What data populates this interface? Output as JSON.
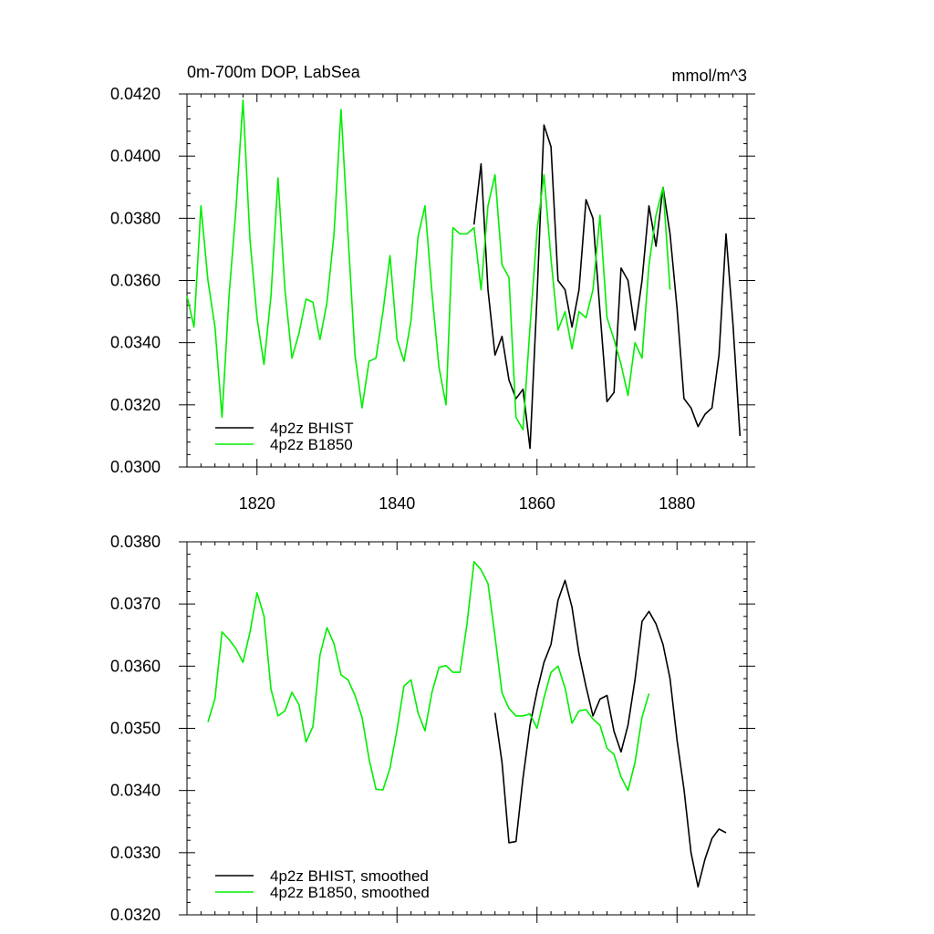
{
  "chart_data": [
    {
      "type": "line",
      "title_left": "0m-700m DOP, LabSea",
      "title_right": "mmol/m^3",
      "xlim": [
        1810,
        1890
      ],
      "ylim": [
        0.03,
        0.042
      ],
      "x_ticks": [
        1820,
        1840,
        1860,
        1880
      ],
      "x_tick_labels": [
        "1820",
        "1840",
        "1860",
        "1880"
      ],
      "y_ticks": [
        0.03,
        0.032,
        0.034,
        0.036,
        0.038,
        0.04,
        0.042
      ],
      "y_tick_labels": [
        "0.0300",
        "0.0320",
        "0.0340",
        "0.0360",
        "0.0380",
        "0.0400",
        "0.0420"
      ],
      "legend_position": "bottom-left",
      "series": [
        {
          "name": "4p2z BHIST",
          "color": "#000000",
          "x": [
            1851,
            1852,
            1853,
            1854,
            1855,
            1856,
            1857,
            1858,
            1859,
            1860,
            1861,
            1862,
            1863,
            1864,
            1865,
            1866,
            1867,
            1868,
            1869,
            1870,
            1871,
            1872,
            1873,
            1874,
            1875,
            1876,
            1877,
            1878,
            1879,
            1880,
            1881,
            1882,
            1883,
            1884,
            1885,
            1886,
            1887,
            1888,
            1889
          ],
          "values": [
            0.0378,
            0.03975,
            0.0357,
            0.0336,
            0.0342,
            0.0328,
            0.0322,
            0.0325,
            0.0306,
            0.0355,
            0.041,
            0.0403,
            0.036,
            0.0357,
            0.0345,
            0.0357,
            0.0386,
            0.038,
            0.035,
            0.0321,
            0.0324,
            0.0364,
            0.036,
            0.0344,
            0.036,
            0.0384,
            0.0371,
            0.039,
            0.0375,
            0.0351,
            0.0322,
            0.0319,
            0.0313,
            0.0317,
            0.0319,
            0.0336,
            0.0375,
            0.0346,
            0.031
          ]
        },
        {
          "name": "4p2z B1850",
          "color": "#00ee00",
          "x": [
            1810,
            1811,
            1812,
            1813,
            1814,
            1815,
            1816,
            1817,
            1818,
            1819,
            1820,
            1821,
            1822,
            1823,
            1824,
            1825,
            1826,
            1827,
            1828,
            1829,
            1830,
            1831,
            1832,
            1833,
            1834,
            1835,
            1836,
            1837,
            1838,
            1839,
            1840,
            1841,
            1842,
            1843,
            1844,
            1845,
            1846,
            1847,
            1848,
            1849,
            1850,
            1851,
            1852,
            1853,
            1854,
            1855,
            1856,
            1857,
            1858,
            1859,
            1860,
            1861,
            1862,
            1863,
            1864,
            1865,
            1866,
            1867,
            1868,
            1869,
            1870,
            1871,
            1872,
            1873,
            1874,
            1875,
            1876,
            1877,
            1878,
            1879
          ],
          "values": [
            0.0355,
            0.0345,
            0.0384,
            0.036,
            0.0345,
            0.0316,
            0.0355,
            0.0383,
            0.0418,
            0.0373,
            0.0348,
            0.0333,
            0.0355,
            0.0393,
            0.0357,
            0.0335,
            0.0343,
            0.0354,
            0.0353,
            0.0341,
            0.0353,
            0.0375,
            0.0415,
            0.0375,
            0.0336,
            0.0319,
            0.0334,
            0.0335,
            0.035,
            0.0368,
            0.0341,
            0.0334,
            0.0347,
            0.0374,
            0.0384,
            0.0356,
            0.0332,
            0.032,
            0.0377,
            0.0375,
            0.0375,
            0.0377,
            0.0357,
            0.0384,
            0.0394,
            0.0365,
            0.0361,
            0.0316,
            0.0312,
            0.0345,
            0.0376,
            0.0394,
            0.0367,
            0.0344,
            0.035,
            0.0338,
            0.035,
            0.0348,
            0.0357,
            0.0381,
            0.0348,
            0.0341,
            0.0333,
            0.0323,
            0.034,
            0.0335,
            0.0365,
            0.0381,
            0.039,
            0.0357
          ]
        }
      ]
    },
    {
      "type": "line",
      "xlim": [
        1810,
        1890
      ],
      "ylim": [
        0.032,
        0.038
      ],
      "y_ticks": [
        0.032,
        0.033,
        0.034,
        0.035,
        0.036,
        0.037,
        0.038
      ],
      "y_tick_labels": [
        "0.0320",
        "0.0330",
        "0.0340",
        "0.0350",
        "0.0360",
        "0.0370",
        "0.0380"
      ],
      "legend_position": "bottom-left",
      "series": [
        {
          "name": "4p2z BHIST, smoothed",
          "color": "#000000",
          "x": [
            1854,
            1855,
            1856,
            1857,
            1858,
            1859,
            1860,
            1861,
            1862,
            1863,
            1864,
            1865,
            1866,
            1867,
            1868,
            1869,
            1870,
            1871,
            1872,
            1873,
            1874,
            1875,
            1876,
            1877,
            1878,
            1879,
            1880,
            1881,
            1882,
            1883,
            1884,
            1885,
            1886,
            1887
          ],
          "values": [
            0.03525,
            0.03445,
            0.03316,
            0.03318,
            0.0342,
            0.03505,
            0.0356,
            0.03606,
            0.03635,
            0.03706,
            0.03738,
            0.03695,
            0.0362,
            0.03567,
            0.0352,
            0.03547,
            0.03553,
            0.03495,
            0.03462,
            0.03505,
            0.03578,
            0.03672,
            0.03688,
            0.03668,
            0.03635,
            0.0358,
            0.03481,
            0.03402,
            0.033,
            0.03245,
            0.0329,
            0.03323,
            0.03338,
            0.03332
          ]
        },
        {
          "name": "4p2z B1850, smoothed",
          "color": "#00ee00",
          "x": [
            1813,
            1814,
            1815,
            1816,
            1817,
            1818,
            1819,
            1820,
            1821,
            1822,
            1823,
            1824,
            1825,
            1826,
            1827,
            1828,
            1829,
            1830,
            1831,
            1832,
            1833,
            1834,
            1835,
            1836,
            1837,
            1838,
            1839,
            1840,
            1841,
            1842,
            1843,
            1844,
            1845,
            1846,
            1847,
            1848,
            1849,
            1850,
            1851,
            1852,
            1853,
            1854,
            1855,
            1856,
            1857,
            1858,
            1859,
            1860,
            1861,
            1862,
            1863,
            1864,
            1865,
            1866,
            1867,
            1868,
            1869,
            1870,
            1871,
            1872,
            1873,
            1874,
            1875,
            1876
          ],
          "values": [
            0.0351,
            0.03548,
            0.03655,
            0.03643,
            0.03628,
            0.03606,
            0.03655,
            0.03718,
            0.03681,
            0.03563,
            0.0352,
            0.03528,
            0.03558,
            0.03538,
            0.03478,
            0.03503,
            0.03618,
            0.03662,
            0.03636,
            0.03586,
            0.03578,
            0.03553,
            0.03518,
            0.03451,
            0.03402,
            0.03401,
            0.03436,
            0.03498,
            0.03568,
            0.03578,
            0.03525,
            0.03496,
            0.03558,
            0.03598,
            0.03601,
            0.0359,
            0.0359,
            0.03668,
            0.03768,
            0.03755,
            0.03733,
            0.03648,
            0.03557,
            0.03532,
            0.0352,
            0.0352,
            0.03523,
            0.035,
            0.03549,
            0.0359,
            0.036,
            0.03565,
            0.03508,
            0.03528,
            0.0353,
            0.03515,
            0.03505,
            0.03468,
            0.03458,
            0.03422,
            0.034,
            0.03445,
            0.03518,
            0.03556
          ]
        }
      ]
    }
  ]
}
